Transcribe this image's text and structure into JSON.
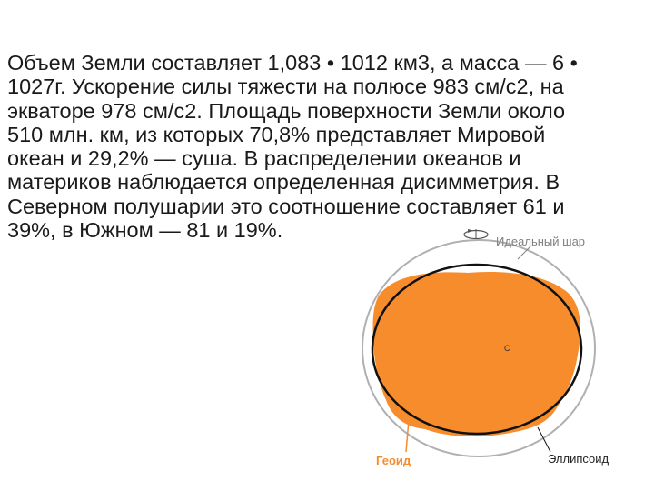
{
  "text": {
    "lines": [
      "Объем Земли составляет 1,083 • 1012 км3, а масса — 6 •",
      "1027г. Ускорение силы тяжести на полюсе 983 см/с2, на",
      "экваторе 978 см/с2. Площадь поверхности Земли около",
      "510 млн. км, из которых 70,8% представляет Мировой",
      "океан и 29,2% — суша. В распределении океанов и",
      "материков наблюдается определенная дисимметрия. В",
      "Северном полушарии это соотношение составляет 61 и",
      "39%, в Южном — 81 и 19%."
    ]
  },
  "diagram": {
    "labels": {
      "ideal_sphere": "Идеальный шар",
      "geoid": "Геоид",
      "ellipsoid": "Эллипсоид",
      "center": "C"
    },
    "colors": {
      "geoid_fill": "#f68c2c",
      "geoid_label": "#f68c2c",
      "ellipsoid_stroke": "#111111",
      "sphere_stroke": "#b0b0b0",
      "label_gray": "#808080"
    }
  }
}
